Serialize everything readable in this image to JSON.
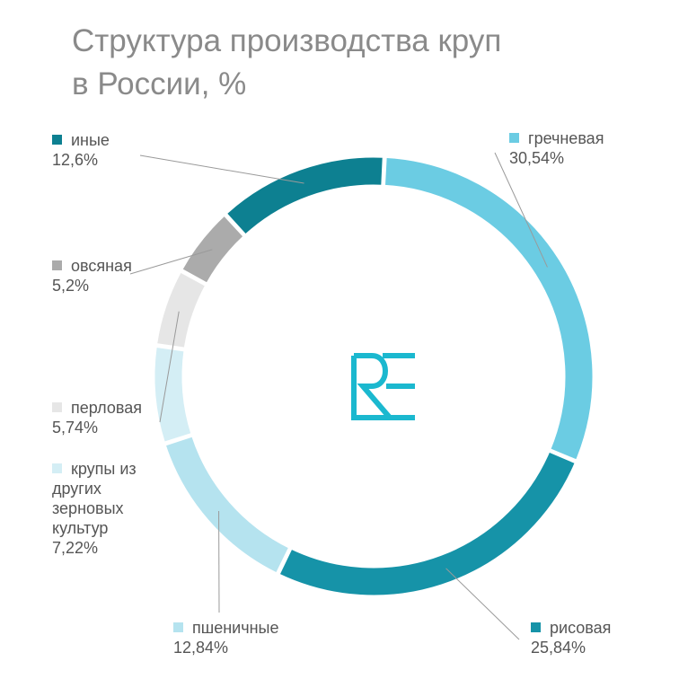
{
  "title": [
    "Структура производства круп",
    "в России, %"
  ],
  "chart_data": {
    "type": "pie",
    "donut": true,
    "title": "Структура производства круп в России, %",
    "categories": [
      "гречневая",
      "рисовая",
      "пшеничные",
      "крупы из других зерновых культур",
      "перловая",
      "овсяная",
      "иные"
    ],
    "values": [
      30.54,
      25.84,
      12.84,
      7.22,
      5.74,
      5.2,
      12.6
    ],
    "value_labels": [
      "30,54%",
      "25,84%",
      "12,84%",
      "7,22%",
      "5,74%",
      "5,2%",
      "12,6%"
    ],
    "colors": [
      "#6bcce3",
      "#1693a8",
      "#b5e3ef",
      "#d4eef5",
      "#e6e6e6",
      "#ababab",
      "#0d8091"
    ]
  },
  "legend": [
    {
      "name": "гречневая",
      "lines": [
        "гречневая"
      ],
      "value": "30,54%",
      "color": "#6bcce3"
    },
    {
      "name": "рисовая",
      "lines": [
        "рисовая"
      ],
      "value": "25,84%",
      "color": "#1693a8"
    },
    {
      "name": "пшеничные",
      "lines": [
        "пшеничные"
      ],
      "value": "12,84%",
      "color": "#b5e3ef"
    },
    {
      "name": "крупы из других зерновых культур",
      "lines": [
        "крупы  из",
        "других",
        "зерновых",
        "культур"
      ],
      "value": "7,22%",
      "color": "#d4eef5"
    },
    {
      "name": "перловая",
      "lines": [
        "перловая"
      ],
      "value": "5,74%",
      "color": "#e6e6e6"
    },
    {
      "name": "овсяная",
      "lines": [
        "овсяная"
      ],
      "value": "5,2%",
      "color": "#ababab"
    },
    {
      "name": "иные",
      "lines": [
        "иные"
      ],
      "value": "12,6%",
      "color": "#0d8091"
    }
  ],
  "logo": {
    "icon": "re-logo-icon",
    "color": "#1bb8cf"
  }
}
